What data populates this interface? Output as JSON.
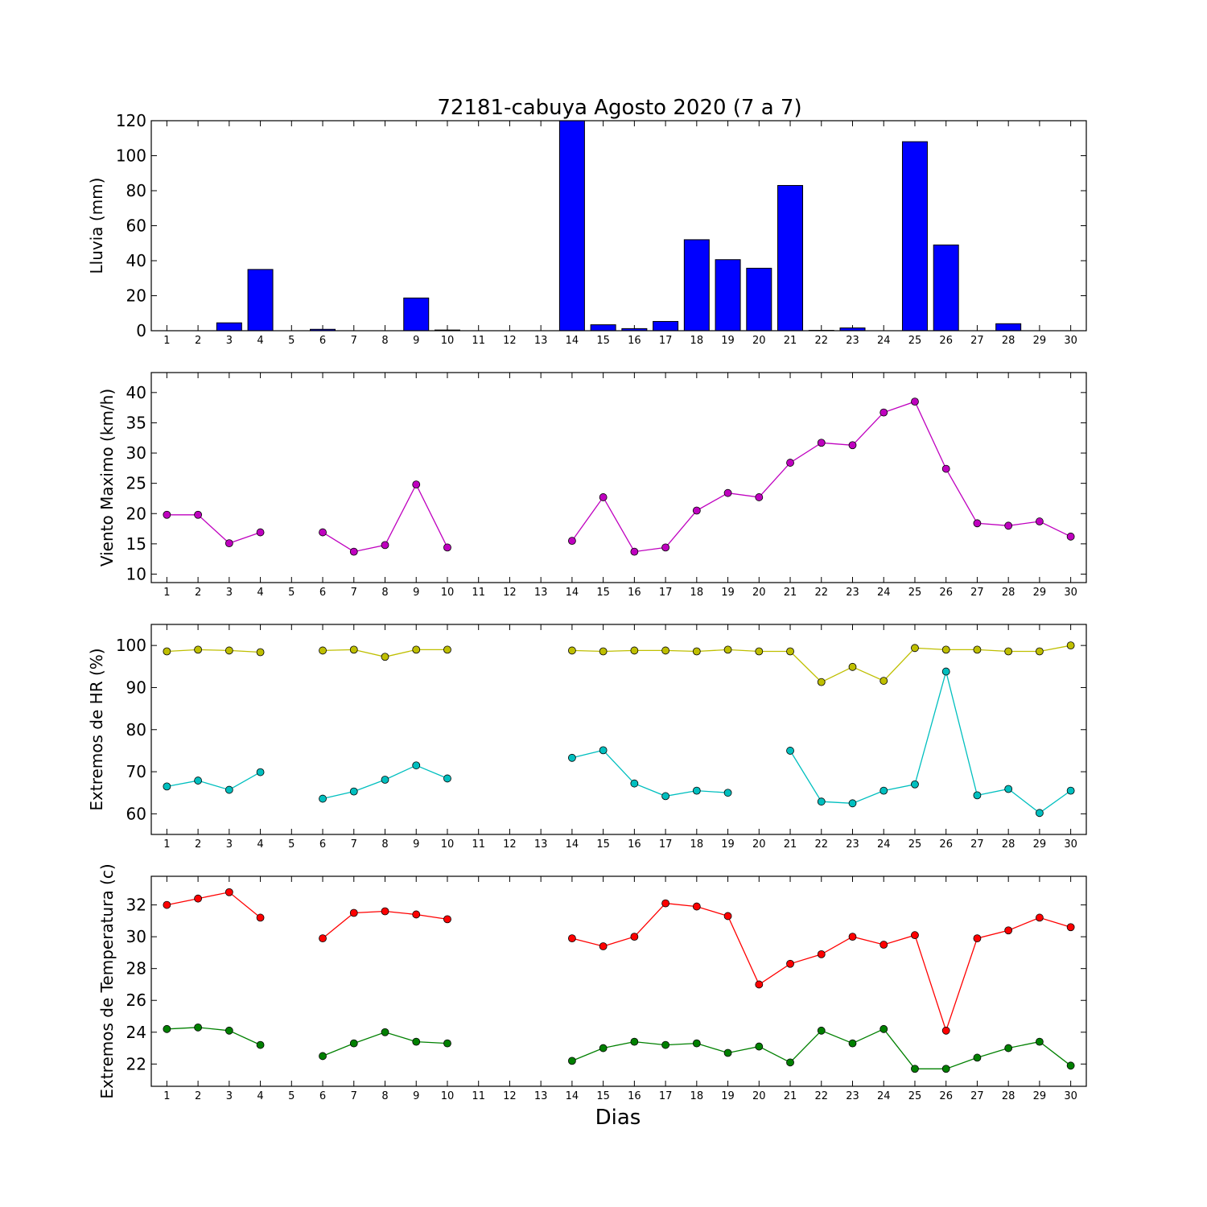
{
  "title": "72181-cabuya Agosto 2020  (7 a 7)",
  "xlabel": "Dias",
  "days": [
    1,
    2,
    3,
    4,
    5,
    6,
    7,
    8,
    9,
    10,
    11,
    12,
    13,
    14,
    15,
    16,
    17,
    18,
    19,
    20,
    21,
    22,
    23,
    24,
    25,
    26,
    27,
    28,
    29,
    30
  ],
  "colors": {
    "rain": "#0000ff",
    "wind": "#bf00bf",
    "hr_max": "#bfbf00",
    "hr_min": "#00bfbf",
    "t_max": "#ff0000",
    "t_min": "#008000"
  },
  "chart_data": [
    {
      "type": "bar",
      "ylabel": "Lluvia (mm)",
      "ylim": [
        0,
        120
      ],
      "yticks": [
        0,
        20,
        40,
        60,
        80,
        100,
        120
      ],
      "x": [
        1,
        2,
        3,
        4,
        5,
        6,
        7,
        8,
        9,
        10,
        11,
        12,
        13,
        14,
        15,
        16,
        17,
        18,
        19,
        20,
        21,
        22,
        23,
        24,
        25,
        26,
        27,
        28,
        29,
        30
      ],
      "series": [
        {
          "color_key": "rain",
          "values": [
            0,
            0,
            4.5,
            35,
            0,
            0.8,
            0,
            0,
            18.7,
            0.4,
            0,
            0,
            0,
            120,
            3.4,
            1.2,
            5.3,
            52,
            40.6,
            35.7,
            83,
            0.2,
            1.6,
            0,
            108,
            49,
            0,
            4,
            0,
            0
          ]
        }
      ]
    },
    {
      "type": "line",
      "ylabel": "Viento Maximo (km/h)",
      "ylim": [
        8.6,
        43.3
      ],
      "yticks": [
        10,
        15,
        20,
        25,
        30,
        35,
        40
      ],
      "x": [
        1,
        2,
        3,
        4,
        5,
        6,
        7,
        8,
        9,
        10,
        11,
        12,
        13,
        14,
        15,
        16,
        17,
        18,
        19,
        20,
        21,
        22,
        23,
        24,
        25,
        26,
        27,
        28,
        29,
        30
      ],
      "series": [
        {
          "color_key": "wind",
          "values": [
            19.8,
            19.8,
            15.1,
            16.9,
            null,
            16.9,
            13.7,
            14.8,
            24.8,
            14.4,
            null,
            null,
            null,
            15.5,
            22.7,
            13.7,
            14.4,
            20.5,
            23.4,
            22.7,
            28.4,
            31.7,
            31.3,
            36.7,
            38.5,
            27.4,
            18.4,
            18.0,
            18.7,
            16.2
          ]
        }
      ]
    },
    {
      "type": "line",
      "ylabel": "Extremos de HR (%)",
      "ylim": [
        55.1,
        105
      ],
      "yticks": [
        60,
        70,
        80,
        90,
        100
      ],
      "x": [
        1,
        2,
        3,
        4,
        5,
        6,
        7,
        8,
        9,
        10,
        11,
        12,
        13,
        14,
        15,
        16,
        17,
        18,
        19,
        20,
        21,
        22,
        23,
        24,
        25,
        26,
        27,
        28,
        29,
        30
      ],
      "series": [
        {
          "color_key": "hr_max",
          "values": [
            98.6,
            99,
            98.8,
            98.4,
            null,
            98.8,
            99,
            97.3,
            99,
            99,
            null,
            null,
            null,
            98.8,
            98.6,
            98.8,
            98.8,
            98.6,
            99,
            98.6,
            98.6,
            91.3,
            94.9,
            91.6,
            99.4,
            99,
            99,
            98.6,
            98.6,
            100
          ]
        },
        {
          "color_key": "hr_min",
          "values": [
            66.5,
            67.9,
            65.7,
            69.9,
            null,
            63.6,
            65.3,
            68.1,
            71.5,
            68.4,
            null,
            null,
            null,
            73.3,
            75.1,
            67.2,
            64.2,
            65.5,
            65,
            null,
            75,
            62.9,
            62.5,
            65.5,
            67,
            93.8,
            64.4,
            65.9,
            60.2,
            65.5
          ]
        }
      ]
    },
    {
      "type": "line",
      "ylabel": "Extremos de Temperatura (c)",
      "ylim": [
        20.6,
        33.8
      ],
      "yticks": [
        22,
        24,
        26,
        28,
        30,
        32
      ],
      "x": [
        1,
        2,
        3,
        4,
        5,
        6,
        7,
        8,
        9,
        10,
        11,
        12,
        13,
        14,
        15,
        16,
        17,
        18,
        19,
        20,
        21,
        22,
        23,
        24,
        25,
        26,
        27,
        28,
        29,
        30
      ],
      "series": [
        {
          "color_key": "t_max",
          "values": [
            32,
            32.4,
            32.8,
            31.2,
            null,
            29.9,
            31.5,
            31.6,
            31.4,
            31.1,
            null,
            null,
            null,
            29.9,
            29.4,
            30,
            32.1,
            31.9,
            31.3,
            27,
            28.3,
            28.9,
            30,
            29.5,
            30.1,
            24.1,
            29.9,
            30.4,
            31.2,
            30.6
          ]
        },
        {
          "color_key": "t_min",
          "values": [
            24.2,
            24.3,
            24.1,
            23.2,
            null,
            22.5,
            23.3,
            24,
            23.4,
            23.3,
            null,
            null,
            null,
            22.2,
            23,
            23.4,
            23.2,
            23.3,
            22.7,
            23.1,
            22.1,
            24.1,
            23.3,
            24.2,
            21.7,
            21.7,
            22.4,
            23,
            23.4,
            21.9
          ]
        }
      ]
    }
  ]
}
